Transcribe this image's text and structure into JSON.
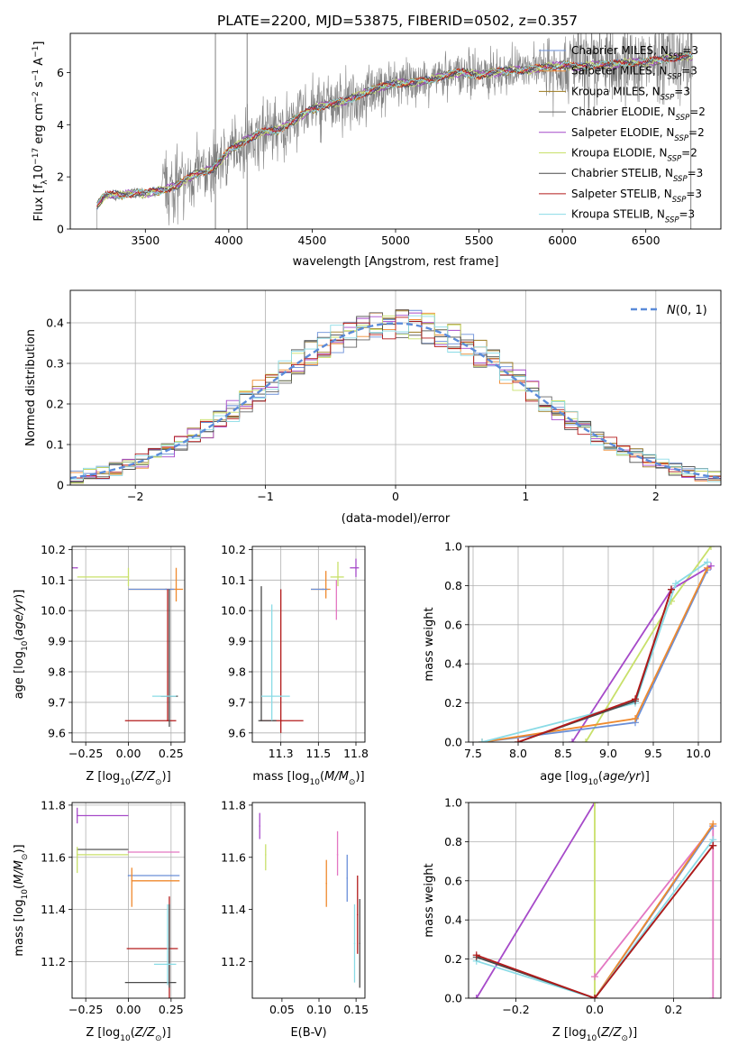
{
  "figure": {
    "title": "PLATE=2200, MJD=53875, FIBERID=0502, z=0.357"
  },
  "colors": {
    "data_gray": "#808080",
    "chabrier_miles": "#6a8fd8",
    "salpeter_miles": "#ef8a2e",
    "kroupa_miles": "#9c7a1e",
    "chabrier_elodie": "#666666",
    "salpeter_elodie": "#a64ac9",
    "kroupa_elodie": "#c8e06a",
    "chabrier_stelib": "#4a4a4a",
    "salpeter_stelib": "#b31a1a",
    "kroupa_stelib": "#8adbe6",
    "pink": "#e377c2",
    "normal_curve": "#5b8bd9"
  },
  "chart_data": [
    {
      "id": "spectrum",
      "type": "line",
      "title": "PLATE=2200, MJD=53875, FIBERID=0502, z=0.357",
      "xlabel": "wavelength [Angstrom, rest frame]",
      "ylabel": "Flux [f_λ 10^-17 erg cm^-2 s^-1 A^-1]",
      "xlim": [
        3050,
        6950
      ],
      "ylim": [
        0,
        7.5
      ],
      "x_ticks": [
        3500,
        4000,
        4500,
        5000,
        5500,
        6000,
        6500
      ],
      "y_ticks": [
        0,
        2,
        4,
        6
      ],
      "grid": false,
      "legend_position": "top-right",
      "continuum": [
        [
          3210,
          0.9
        ],
        [
          3260,
          1.3
        ],
        [
          3350,
          1.3
        ],
        [
          3450,
          1.4
        ],
        [
          3500,
          1.35
        ],
        [
          3600,
          1.5
        ],
        [
          3700,
          1.7
        ],
        [
          3800,
          2.1
        ],
        [
          3900,
          2.3
        ],
        [
          3950,
          2.6
        ],
        [
          4000,
          3.0
        ],
        [
          4100,
          3.4
        ],
        [
          4200,
          3.7
        ],
        [
          4300,
          3.8
        ],
        [
          4400,
          4.2
        ],
        [
          4500,
          4.6
        ],
        [
          4600,
          4.8
        ],
        [
          4700,
          4.9
        ],
        [
          4800,
          5.2
        ],
        [
          4900,
          5.4
        ],
        [
          5000,
          5.6
        ],
        [
          5100,
          5.6
        ],
        [
          5200,
          5.7
        ],
        [
          5300,
          5.9
        ],
        [
          5400,
          6.0
        ],
        [
          5500,
          5.9
        ],
        [
          5600,
          6.0
        ],
        [
          5700,
          6.1
        ],
        [
          5800,
          6.1
        ],
        [
          5900,
          6.2
        ],
        [
          6000,
          6.3
        ],
        [
          6100,
          6.2
        ],
        [
          6200,
          6.3
        ],
        [
          6300,
          6.3
        ],
        [
          6400,
          6.4
        ],
        [
          6500,
          6.4
        ],
        [
          6600,
          6.5
        ],
        [
          6700,
          6.6
        ],
        [
          6780,
          6.6
        ]
      ],
      "series": [
        {
          "name": "Chabrier MILES, N_SSP=3",
          "color_key": "chabrier_miles"
        },
        {
          "name": "Salpeter MILES, N_SSP=3",
          "color_key": "salpeter_miles"
        },
        {
          "name": "Kroupa MILES, N_SSP=3",
          "color_key": "kroupa_miles"
        },
        {
          "name": "Chabrier ELODIE, N_SSP=2",
          "color_key": "chabrier_elodie"
        },
        {
          "name": "Salpeter ELODIE, N_SSP=2",
          "color_key": "salpeter_elodie"
        },
        {
          "name": "Kroupa ELODIE, N_SSP=2",
          "color_key": "kroupa_elodie"
        },
        {
          "name": "Chabrier STELIB, N_SSP=3",
          "color_key": "chabrier_stelib"
        },
        {
          "name": "Salpeter STELIB, N_SSP=3",
          "color_key": "salpeter_stelib"
        },
        {
          "name": "Kroupa STELIB, N_SSP=3",
          "color_key": "kroupa_stelib"
        }
      ]
    },
    {
      "id": "residuals",
      "type": "area",
      "xlabel": "(data-model)/error",
      "ylabel": "Normed distribution",
      "xlim": [
        -2.5,
        2.5
      ],
      "ylim": [
        0,
        0.48
      ],
      "x_ticks": [
        -2,
        -1,
        0,
        1,
        2
      ],
      "y_ticks": [
        0.0,
        0.1,
        0.2,
        0.3,
        0.4
      ],
      "grid": true,
      "legend_position": "top-right",
      "legend": "N(0,1)",
      "bin_width": 0.1,
      "base_bins": [
        0.02,
        0.03,
        0.03,
        0.04,
        0.04,
        0.05,
        0.06,
        0.07,
        0.08,
        0.1,
        0.12,
        0.13,
        0.15,
        0.16,
        0.18,
        0.19,
        0.21,
        0.23,
        0.24,
        0.26,
        0.27,
        0.29,
        0.3,
        0.32,
        0.33,
        0.35,
        0.36,
        0.37,
        0.38,
        0.39,
        0.39,
        0.4,
        0.4,
        0.41,
        0.41,
        0.4,
        0.39,
        0.38,
        0.37,
        0.36,
        0.34,
        0.33,
        0.31,
        0.3,
        0.28,
        0.26,
        0.25,
        0.23,
        0.21,
        0.19,
        0.18,
        0.16,
        0.15,
        0.13,
        0.11,
        0.1,
        0.09,
        0.08,
        0.07,
        0.06,
        0.05,
        0.04,
        0.04,
        0.03,
        0.03,
        0.03,
        0.02,
        0.02,
        0.02,
        0.02,
        0.02,
        0.01
      ]
    },
    {
      "id": "age_vs_Z",
      "type": "scatter",
      "xlabel": "Z [log10(Z/Z⊙)]",
      "ylabel": "age [log10(age/yr)]",
      "xlim": [
        -0.33,
        0.33
      ],
      "ylim": [
        9.57,
        10.21
      ],
      "x_ticks": [
        -0.25,
        0.0,
        0.25
      ],
      "y_ticks": [
        9.6,
        9.7,
        9.8,
        9.9,
        10.0,
        10.1,
        10.2
      ],
      "grid": true,
      "points": [
        {
          "x": -0.3,
          "xerr": [
            0.3,
            0
          ],
          "y": 10.14,
          "color_key": "salpeter_elodie"
        },
        {
          "x": 0.0,
          "xerr": [
            0.3,
            0
          ],
          "y": 10.11,
          "yerr": [
            0.03,
            0.03
          ],
          "color_key": "kroupa_elodie"
        },
        {
          "x": 0.28,
          "xerr": [
            0.28,
            0.04
          ],
          "y": 10.07,
          "yerr": [
            0.04,
            0.07
          ],
          "color_key": "salpeter_miles"
        },
        {
          "x": 0.22,
          "y": 10.07,
          "xerr": [
            0.22,
            0.05
          ],
          "color_key": "chabrier_miles"
        },
        {
          "x": 0.23,
          "y": 9.64,
          "xerr": [
            0.25,
            0.05
          ],
          "yerr": [
            0,
            0.43
          ],
          "color_key": "salpeter_stelib"
        },
        {
          "x": 0.24,
          "y": 9.72,
          "xerr": [
            0.05,
            0.05
          ],
          "yerr": [
            0.1,
            0.35
          ],
          "color_key": "chabrier_stelib"
        },
        {
          "x": 0.22,
          "y": 9.72,
          "xerr": [
            0.08,
            0.06
          ],
          "color_key": "kroupa_stelib"
        }
      ]
    },
    {
      "id": "age_vs_mass",
      "type": "scatter",
      "xlabel": "mass [log10(M/M⊙)]",
      "ylabel": "",
      "xlim": [
        11.06,
        11.81
      ],
      "ylim": [
        9.57,
        10.21
      ],
      "x_ticks": [
        11.25,
        11.5,
        11.75
      ],
      "y_ticks": [
        9.6,
        9.7,
        9.8,
        9.9,
        10.0,
        10.1,
        10.2
      ],
      "grid": true,
      "points": [
        {
          "x": 11.75,
          "y": 10.14,
          "xerr": [
            0.04,
            0.02
          ],
          "yerr": [
            0.03,
            0.03
          ],
          "color_key": "salpeter_elodie"
        },
        {
          "x": 11.63,
          "y": 10.11,
          "xerr": [
            0.05,
            0.04
          ],
          "yerr": [
            0.03,
            0.05
          ],
          "color_key": "kroupa_elodie"
        },
        {
          "x": 11.55,
          "y": 10.07,
          "xerr": [
            0.1,
            0.03
          ],
          "yerr": [
            0.03,
            0.06
          ],
          "color_key": "salpeter_miles"
        },
        {
          "x": 11.53,
          "y": 10.07,
          "xerr": [
            0.08,
            0.03
          ],
          "color_key": "chabrier_miles"
        },
        {
          "x": 11.25,
          "y": 9.64,
          "xerr": [
            0.14,
            0.15
          ],
          "yerr": [
            0.04,
            0.43
          ],
          "color_key": "salpeter_stelib"
        },
        {
          "x": 11.12,
          "y": 9.64,
          "xerr": [
            0.02,
            0.1
          ],
          "yerr": [
            0,
            0.44
          ],
          "color_key": "chabrier_stelib"
        },
        {
          "x": 11.19,
          "y": 9.72,
          "xerr": [
            0.07,
            0.12
          ],
          "yerr": [
            0.08,
            0.3
          ],
          "color_key": "kroupa_stelib"
        },
        {
          "x": 11.62,
          "y": 10.0,
          "yerr": [
            0.03,
            0.1
          ],
          "color_key": "pink"
        }
      ]
    },
    {
      "id": "weight_vs_age",
      "type": "line",
      "xlabel": "age [log10(age/yr)]",
      "ylabel": "mass weight",
      "xlim": [
        7.45,
        10.25
      ],
      "ylim": [
        0,
        1
      ],
      "x_ticks": [
        7.5,
        8.0,
        8.5,
        9.0,
        9.5,
        10.0
      ],
      "y_ticks": [
        0.0,
        0.2,
        0.4,
        0.6,
        0.8,
        1.0
      ],
      "grid": true,
      "series": [
        {
          "color_key": "kroupa_elodie",
          "x": [
            8.75,
            9.7,
            10.14
          ],
          "y": [
            0.0,
            0.72,
            1.0
          ]
        },
        {
          "color_key": "salpeter_elodie",
          "x": [
            8.6,
            9.7,
            10.14
          ],
          "y": [
            0.0,
            0.78,
            0.9
          ]
        },
        {
          "color_key": "chabrier_miles",
          "x": [
            7.6,
            9.3,
            10.1
          ],
          "y": [
            0.0,
            0.1,
            0.88
          ]
        },
        {
          "color_key": "salpeter_miles",
          "x": [
            7.6,
            9.3,
            10.1
          ],
          "y": [
            0.0,
            0.12,
            0.89
          ]
        },
        {
          "color_key": "kroupa_stelib",
          "x": [
            7.6,
            9.3,
            9.75,
            10.1
          ],
          "y": [
            0.0,
            0.2,
            0.81,
            0.92
          ]
        },
        {
          "color_key": "chabrier_stelib",
          "x": [
            8.0,
            9.3,
            9.7
          ],
          "y": [
            0.0,
            0.21,
            0.78
          ]
        },
        {
          "color_key": "salpeter_stelib",
          "x": [
            8.0,
            9.3,
            9.7
          ],
          "y": [
            0.0,
            0.22,
            0.78
          ]
        }
      ]
    },
    {
      "id": "mass_vs_Z",
      "type": "scatter",
      "xlabel": "Z [log10(Z/Z⊙)]",
      "ylabel": "mass [log10(M/M⊙)]",
      "xlim": [
        -0.33,
        0.33
      ],
      "ylim": [
        11.06,
        11.81
      ],
      "x_ticks": [
        -0.25,
        0.0,
        0.25
      ],
      "y_ticks": [
        11.2,
        11.4,
        11.6,
        11.8
      ],
      "grid": true,
      "points": [
        {
          "x": -0.3,
          "y": 11.76,
          "xerr": [
            0,
            0.3
          ],
          "yerr": [
            0.03,
            0.03
          ],
          "color_key": "salpeter_elodie"
        },
        {
          "x": -0.3,
          "y": 11.63,
          "xerr": [
            0,
            0.3
          ],
          "color_key": "chabrier_elodie"
        },
        {
          "x": -0.3,
          "y": 11.61,
          "xerr": [
            0,
            0.3
          ],
          "yerr": [
            0.07,
            0.03
          ],
          "color_key": "kroupa_elodie"
        },
        {
          "x": 0.0,
          "y": 11.62,
          "xerr": [
            0,
            0.3
          ],
          "color_key": "pink"
        },
        {
          "x": 0.0,
          "y": 11.53,
          "xerr": [
            0,
            0.3
          ],
          "color_key": "chabrier_miles"
        },
        {
          "x": 0.02,
          "y": 11.51,
          "xerr": [
            0,
            0.28
          ],
          "yerr": [
            0.1,
            0.05
          ],
          "color_key": "salpeter_miles"
        },
        {
          "x": 0.24,
          "y": 11.25,
          "xerr": [
            0.25,
            0.05
          ],
          "yerr": [
            0.2,
            0.2
          ],
          "color_key": "salpeter_stelib"
        },
        {
          "x": 0.24,
          "y": 11.12,
          "xerr": [
            0.26,
            0.04
          ],
          "yerr": [
            0.02,
            0.3
          ],
          "color_key": "chabrier_stelib"
        },
        {
          "x": 0.23,
          "y": 11.19,
          "xerr": [
            0.08,
            0.05
          ],
          "yerr": [
            0.08,
            0.23
          ],
          "color_key": "kroupa_stelib"
        }
      ]
    },
    {
      "id": "mass_vs_ebv",
      "type": "scatter",
      "xlabel": "E(B-V)",
      "ylabel": "",
      "xlim": [
        0.01,
        0.162
      ],
      "ylim": [
        11.06,
        11.81
      ],
      "x_ticks": [
        0.05,
        0.1,
        0.15
      ],
      "y_ticks": [
        11.2,
        11.4,
        11.6,
        11.8
      ],
      "grid": false,
      "points": [
        {
          "x": 0.02,
          "y": 11.72,
          "yerr": [
            0.05,
            0.05
          ],
          "color_key": "salpeter_elodie"
        },
        {
          "x": 0.028,
          "y": 11.61,
          "yerr": [
            0.06,
            0.04
          ],
          "color_key": "kroupa_elodie"
        },
        {
          "x": 0.11,
          "y": 11.5,
          "yerr": [
            0.09,
            0.09
          ],
          "color_key": "salpeter_miles"
        },
        {
          "x": 0.125,
          "y": 11.61,
          "yerr": [
            0.08,
            0.09
          ],
          "color_key": "pink"
        },
        {
          "x": 0.138,
          "y": 11.52,
          "yerr": [
            0.09,
            0.09
          ],
          "color_key": "chabrier_miles"
        },
        {
          "x": 0.148,
          "y": 11.27,
          "yerr": [
            0.15,
            0.15
          ],
          "color_key": "kroupa_stelib"
        },
        {
          "x": 0.152,
          "y": 11.38,
          "yerr": [
            0.15,
            0.15
          ],
          "color_key": "salpeter_stelib"
        },
        {
          "x": 0.155,
          "y": 11.27,
          "yerr": [
            0.17,
            0.17
          ],
          "color_key": "chabrier_stelib"
        }
      ]
    },
    {
      "id": "weight_vs_Z",
      "type": "line",
      "xlabel": "Z [log10(Z/Z⊙)]",
      "ylabel": "mass weight",
      "xlim": [
        -0.32,
        0.32
      ],
      "ylim": [
        0,
        1
      ],
      "x_ticks": [
        -0.2,
        0.0,
        0.2
      ],
      "y_ticks": [
        0.0,
        0.2,
        0.4,
        0.6,
        0.8,
        1.0
      ],
      "grid": true,
      "series": [
        {
          "color_key": "salpeter_elodie",
          "x": [
            -0.3,
            0.0
          ],
          "y": [
            0.0,
            1.0
          ]
        },
        {
          "color_key": "kroupa_elodie",
          "x": [
            0.0,
            0.0
          ],
          "y": [
            0.0,
            1.0
          ]
        },
        {
          "color_key": "pink",
          "x": [
            0.0,
            0.3,
            0.3
          ],
          "y": [
            0.11,
            0.88,
            0.0
          ]
        },
        {
          "color_key": "chabrier_miles",
          "x": [
            0.0,
            0.3
          ],
          "y": [
            0.0,
            0.88
          ]
        },
        {
          "color_key": "salpeter_miles",
          "x": [
            0.0,
            0.3
          ],
          "y": [
            0.0,
            0.89
          ]
        },
        {
          "color_key": "kroupa_stelib",
          "x": [
            -0.3,
            0.0,
            0.3
          ],
          "y": [
            0.19,
            0.0,
            0.81
          ]
        },
        {
          "color_key": "chabrier_stelib",
          "x": [
            -0.3,
            0.0,
            0.3
          ],
          "y": [
            0.21,
            0.0,
            0.78
          ]
        },
        {
          "color_key": "salpeter_stelib",
          "x": [
            -0.3,
            0.0,
            0.3
          ],
          "y": [
            0.22,
            0.0,
            0.78
          ]
        }
      ]
    }
  ]
}
